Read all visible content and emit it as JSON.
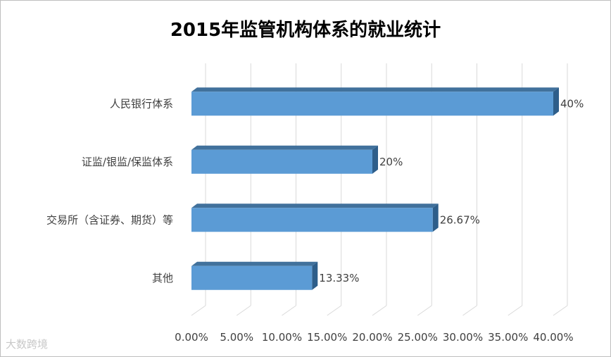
{
  "chart_data": {
    "type": "bar",
    "orientation": "horizontal",
    "title": "2015年监管机构体系的就业统计",
    "categories": [
      "人民银行体系",
      "证监/银监/保监体系",
      "交易所（含证券、期货）等",
      "其他"
    ],
    "values": [
      40,
      20,
      26.67,
      13.33
    ],
    "data_labels": [
      "40%",
      "20%",
      "26.67%",
      "13.33%"
    ],
    "x_ticks": [
      "0.00%",
      "5.00%",
      "10.00%",
      "15.00%",
      "20.00%",
      "25.00%",
      "30.00%",
      "35.00%",
      "40.00%"
    ],
    "xlim": [
      0,
      40
    ],
    "grid": true,
    "legend": "none",
    "bar_color": "#5b9bd5"
  },
  "watermark": "大数跨境"
}
